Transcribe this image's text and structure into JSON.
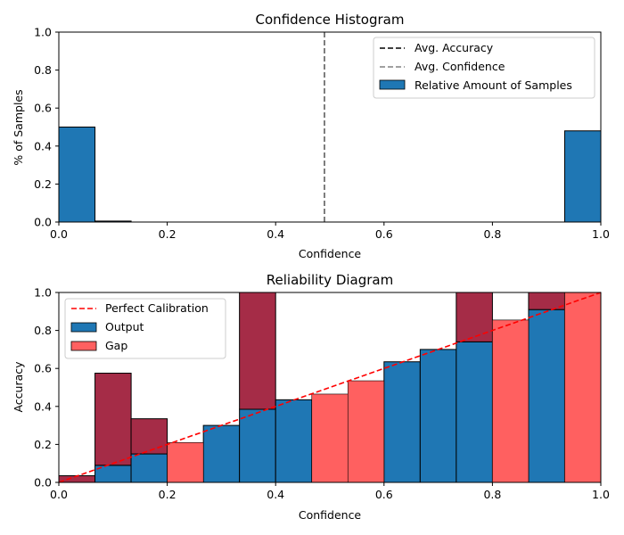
{
  "chart_data": [
    {
      "type": "bar",
      "title": "Confidence Histogram",
      "xlabel": "Confidence",
      "ylabel": "% of Samples",
      "xlim": [
        0,
        1
      ],
      "ylim": [
        0,
        1
      ],
      "xticks": [
        "0.0",
        "0.2",
        "0.4",
        "0.6",
        "0.8",
        "1.0"
      ],
      "yticks": [
        "0.0",
        "0.2",
        "0.4",
        "0.6",
        "0.8",
        "1.0"
      ],
      "bin_width": 0.0667,
      "bin_starts": [
        0.0,
        0.0667
      ],
      "values": [
        0.5,
        0.005
      ],
      "bin_starts_right": [
        0.9333
      ],
      "values_right": [
        0.48
      ],
      "avg_accuracy": 0.49,
      "avg_confidence": 0.49,
      "legend": [
        "Avg. Accuracy",
        "Avg. Confidence",
        "Relative Amount of Samples"
      ],
      "legend_position": "top-right",
      "colors": {
        "bar": "#1f77b4",
        "accuracy_line": "#000000",
        "confidence_line": "#808080"
      }
    },
    {
      "type": "bar",
      "title": "Reliability Diagram",
      "xlabel": "Confidence",
      "ylabel": "Accuracy",
      "xlim": [
        0,
        1
      ],
      "ylim": [
        0,
        1
      ],
      "xticks": [
        "0.0",
        "0.2",
        "0.4",
        "0.6",
        "0.8",
        "1.0"
      ],
      "yticks": [
        "0.0",
        "0.2",
        "0.4",
        "0.6",
        "0.8",
        "1.0"
      ],
      "bin_width": 0.0667,
      "bin_starts": [
        0.0,
        0.0667,
        0.1333,
        0.2,
        0.2667,
        0.3333,
        0.4,
        0.4667,
        0.5333,
        0.6,
        0.6667,
        0.7333,
        0.8,
        0.8667,
        0.9333
      ],
      "output": [
        0.0,
        0.09,
        0.15,
        0.0,
        0.3,
        0.385,
        0.435,
        0.0,
        0.0,
        0.635,
        0.7,
        0.74,
        0.0,
        0.91,
        0.965
      ],
      "gap_bottom": [
        0.0,
        0.09,
        0.15,
        0.0,
        0.3,
        0.385,
        0.435,
        0.0,
        0.0,
        0.635,
        0.7,
        0.74,
        0.0,
        0.91,
        0.965
      ],
      "gap_top": [
        0.035,
        0.575,
        0.335,
        0.0,
        0.3,
        1.0,
        0.435,
        0.0,
        0.0,
        0.635,
        0.7,
        1.0,
        0.0,
        1.0,
        1.0
      ],
      "gap_light": [
        {
          "x0": 0.2,
          "top": 0.21
        },
        {
          "x0": 0.4667,
          "top": 0.465
        },
        {
          "x0": 0.5333,
          "top": 0.535
        },
        {
          "x0": 0.8,
          "top": 0.855
        },
        {
          "x0": 0.9333,
          "top": 1.0
        }
      ],
      "legend": [
        "Perfect Calibration",
        "Output",
        "Gap"
      ],
      "legend_position": "top-left",
      "colors": {
        "output": "#1f77b4",
        "gap_light": "#ff6060",
        "gap_dark": "#a52c47",
        "diag": "#ff0000"
      }
    }
  ]
}
